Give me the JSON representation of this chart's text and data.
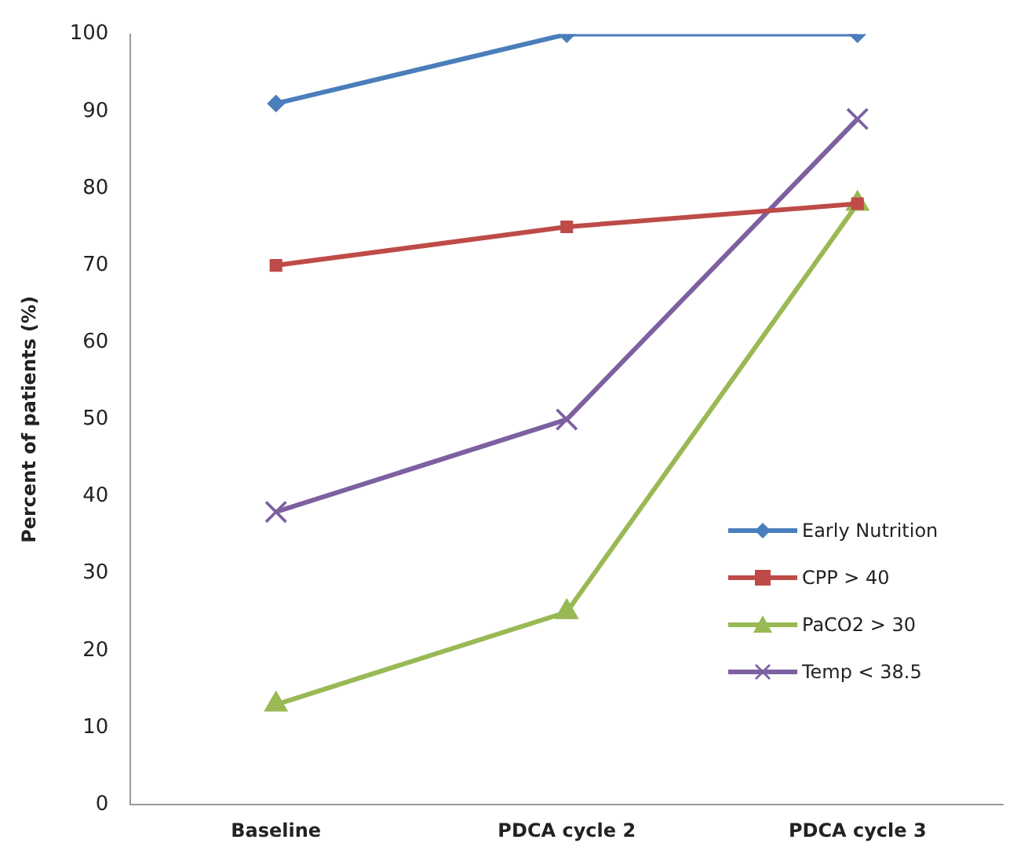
{
  "chart_data": {
    "type": "line",
    "ylabel": "Percent of patients (%)",
    "categories": [
      "Baseline",
      "PDCA cycle 2",
      "PDCA cycle 3"
    ],
    "ylim": [
      0,
      100
    ],
    "yticks": [
      0,
      10,
      20,
      30,
      40,
      50,
      60,
      70,
      80,
      90,
      100
    ],
    "grid": false,
    "legend": "bottom right",
    "line_style": "solid",
    "series": [
      {
        "name": "Early Nutrition",
        "color": "#4a7ebb",
        "marker": "diamond",
        "values": [
          91,
          100,
          100
        ]
      },
      {
        "name": "CPP > 40",
        "color": "#be4b48",
        "marker": "square",
        "values": [
          70,
          75,
          78
        ]
      },
      {
        "name": "PaCO2  > 30",
        "color": "#98b954",
        "marker": "triangle",
        "values": [
          13,
          25,
          78
        ]
      },
      {
        "name": "Temp < 38.5",
        "color": "#7d60a0",
        "marker": "cross",
        "values": [
          38,
          50,
          89
        ]
      }
    ]
  }
}
